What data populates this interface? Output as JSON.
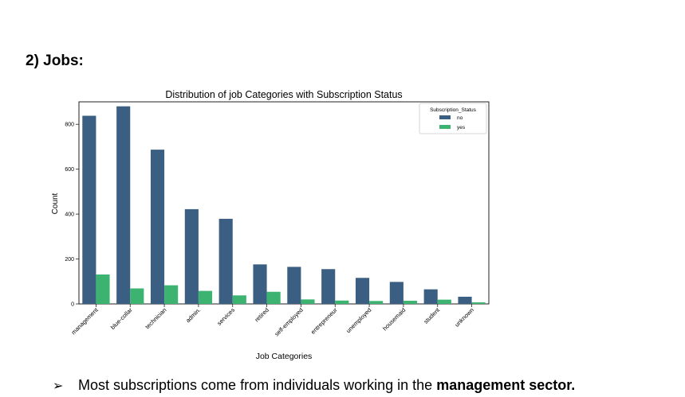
{
  "document": {
    "heading": "2) Jobs:",
    "bullet": {
      "arrow": "➢",
      "text_before": "Most subscriptions come from individuals working in the ",
      "text_bold": "management sector."
    }
  },
  "chart_data": {
    "type": "bar",
    "title": "Distribution of job Categories with Subscription Status",
    "xlabel": "Job Categories",
    "ylabel": "Count",
    "ylim": [
      0,
      900
    ],
    "yticks": [
      0,
      200,
      400,
      600,
      800
    ],
    "categories": [
      "management",
      "blue-collar",
      "technician",
      "admin.",
      "services",
      "retired",
      "self-employed",
      "entrepreneur",
      "unemployed",
      "housemaid",
      "student",
      "unknown"
    ],
    "series": [
      {
        "name": "no",
        "color": "#3b5f82",
        "values": [
          838,
          880,
          687,
          422,
          379,
          176,
          165,
          155,
          116,
          98,
          65,
          32
        ]
      },
      {
        "name": "yes",
        "color": "#3cb371",
        "values": [
          131,
          69,
          83,
          58,
          38,
          54,
          20,
          15,
          13,
          14,
          19,
          7
        ]
      }
    ],
    "legend": {
      "title": "Subscription_Status",
      "placement": "top-right"
    },
    "grid": false
  }
}
